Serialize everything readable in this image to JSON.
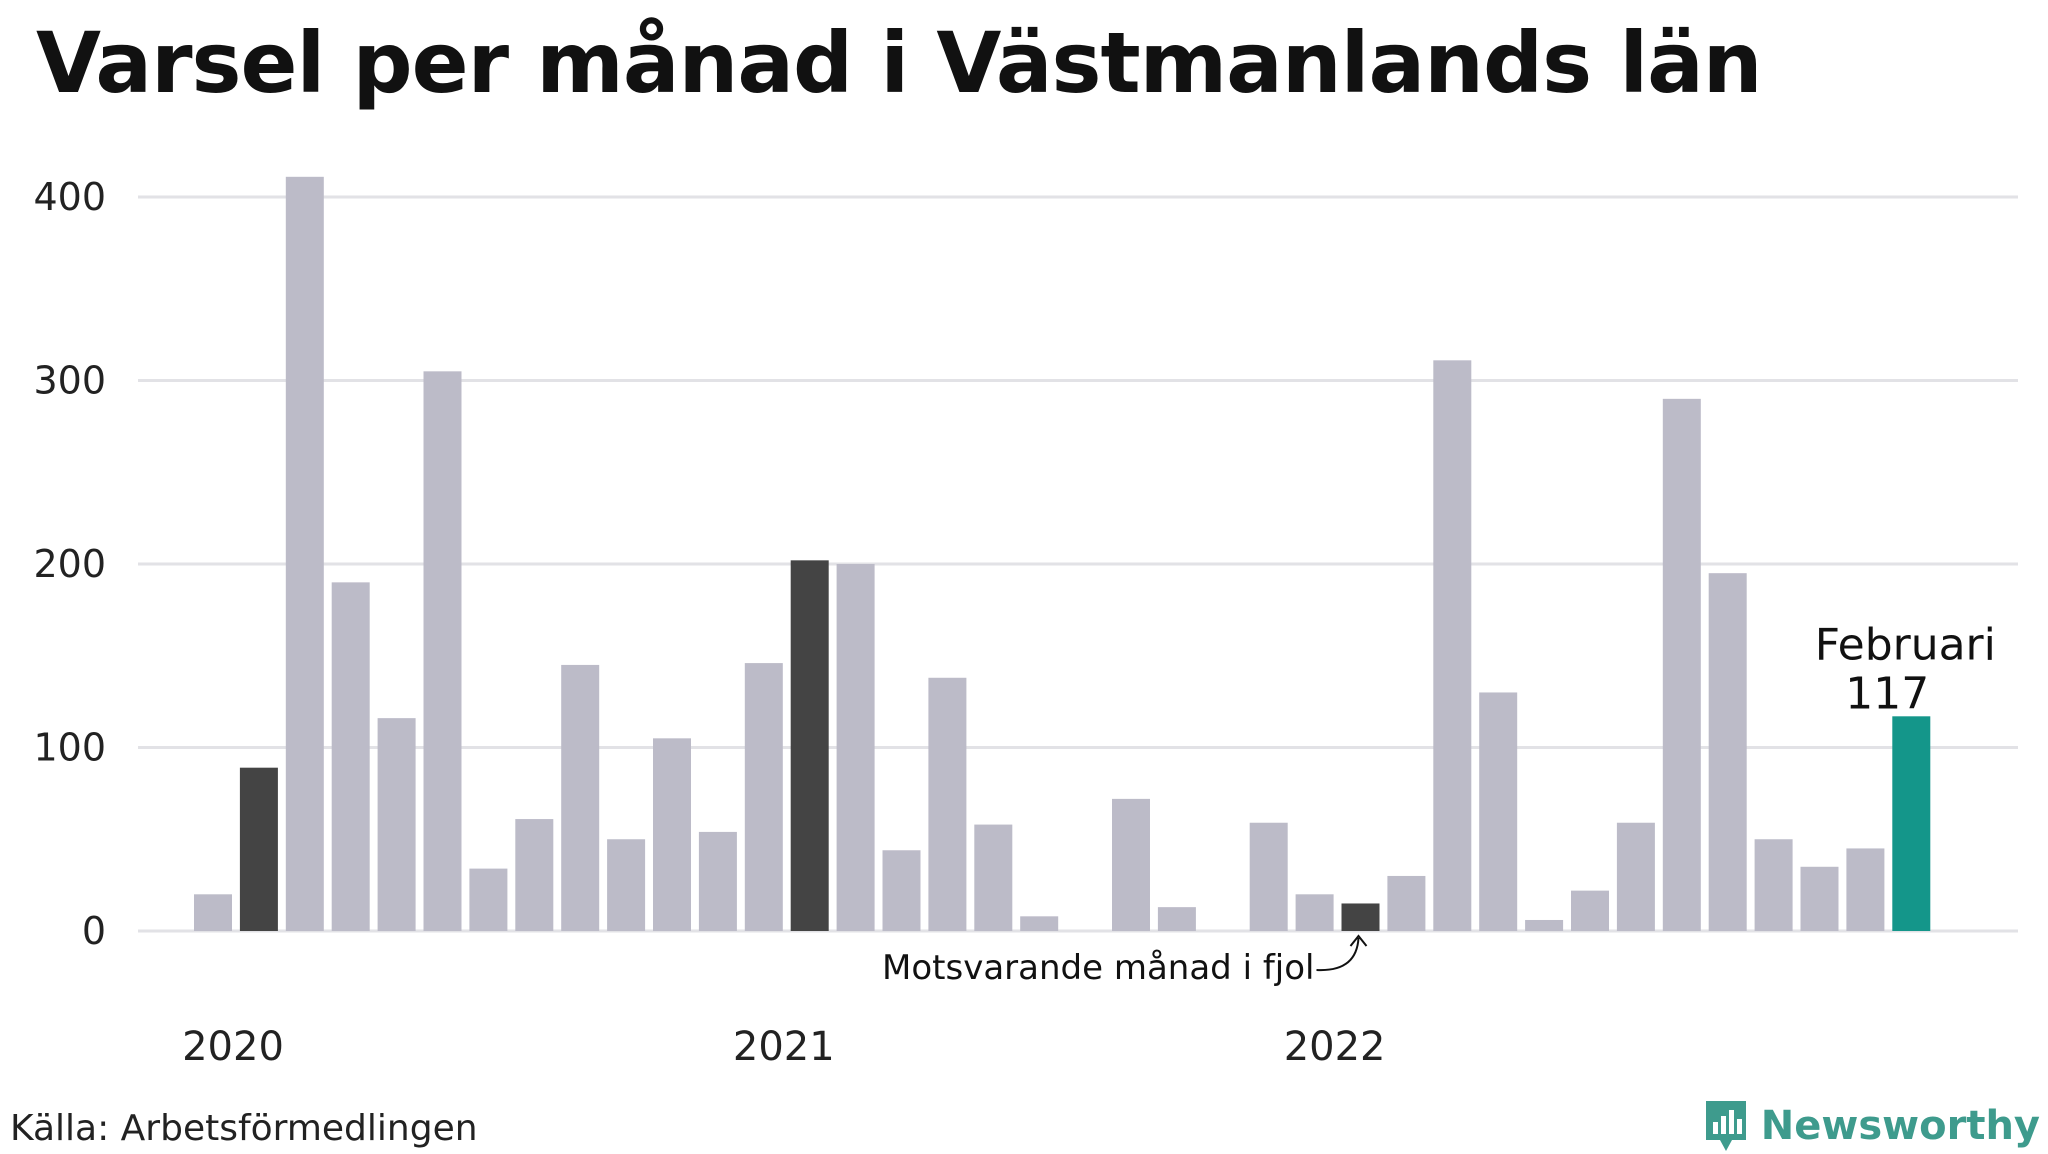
{
  "title": "Varsel per månad i Västmanlands län",
  "source": "Källa: Arbetsförmedlingen",
  "brand": {
    "name": "Newsworthy",
    "icon": "newsworthy-logo-icon",
    "color": "#3e9b8d"
  },
  "annotation": {
    "text": "Motsvarande månad i fjol"
  },
  "highlight": {
    "month_label": "Februari",
    "value_label": "117"
  },
  "colors": {
    "default": "#bcbbc8",
    "previous_years": "#444444",
    "current": "#14968a",
    "grid": "#e2e2e6"
  },
  "chart_data": {
    "type": "bar",
    "x_tick_labels": [
      "2020",
      "2021",
      "2022"
    ],
    "y_ticks": [
      0,
      100,
      200,
      300,
      400
    ],
    "ylim": [
      0,
      420
    ],
    "grid": true,
    "values": [
      20,
      89,
      411,
      190,
      116,
      305,
      34,
      61,
      145,
      50,
      105,
      54,
      146,
      202,
      200,
      44,
      138,
      58,
      8,
      0,
      72,
      13,
      0,
      59,
      20,
      15,
      30,
      311,
      130,
      6,
      22,
      59,
      290,
      195,
      50,
      35,
      45,
      117
    ],
    "highlight_kind": [
      "default",
      "previous",
      "default",
      "default",
      "default",
      "default",
      "default",
      "default",
      "default",
      "default",
      "default",
      "default",
      "default",
      "previous",
      "default",
      "default",
      "default",
      "default",
      "default",
      "default",
      "default",
      "default",
      "default",
      "default",
      "default",
      "previous",
      "default",
      "default",
      "default",
      "default",
      "default",
      "default",
      "default",
      "default",
      "default",
      "default",
      "default",
      "current"
    ]
  }
}
